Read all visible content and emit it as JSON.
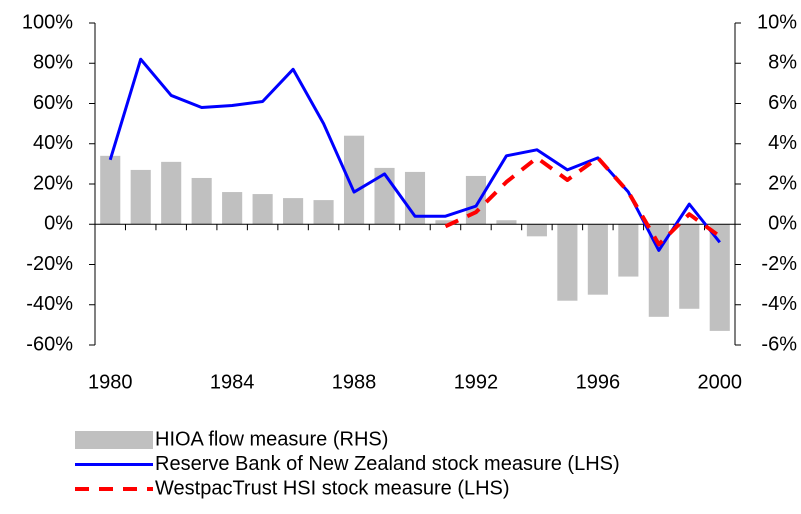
{
  "chart_data": {
    "type": "bar-line",
    "categories": [
      "1980",
      null,
      null,
      null,
      "1984",
      null,
      null,
      null,
      "1988",
      null,
      null,
      null,
      "1992",
      null,
      null,
      null,
      "1996",
      null,
      null,
      null,
      "2000"
    ],
    "series": [
      {
        "name": "HIOA flow measure (RHS)",
        "type": "bar",
        "axis": "y2",
        "color": "#c0c0c0",
        "values": [
          3.4,
          2.7,
          3.1,
          2.3,
          1.6,
          1.5,
          1.3,
          1.2,
          4.4,
          2.8,
          2.6,
          0.2,
          2.4,
          0.2,
          -0.6,
          -3.8,
          -3.5,
          -2.6,
          -4.6,
          -4.2,
          -5.3
        ]
      },
      {
        "name": "Reserve Bank of New Zealand stock measure (LHS)",
        "type": "line",
        "color": "#0000ff",
        "dash": "solid",
        "values": [
          32,
          82,
          64,
          58,
          59,
          61,
          77,
          50,
          16,
          25,
          4,
          4,
          9,
          34,
          37,
          27,
          33,
          16,
          -13,
          10,
          -9
        ]
      },
      {
        "name": "WestpacTrust HSI stock measure (LHS)",
        "type": "line",
        "color": "#ff0000",
        "dash": "dashed",
        "values": [
          null,
          null,
          null,
          null,
          null,
          null,
          null,
          null,
          null,
          null,
          null,
          -1,
          6,
          21,
          33,
          22,
          33,
          16,
          -10,
          5,
          -6
        ]
      }
    ],
    "ylim": [
      -60,
      100
    ],
    "yticks": [
      {
        "value": 100,
        "label": "100%"
      },
      {
        "value": 80,
        "label": "80%"
      },
      {
        "value": 60,
        "label": "60%"
      },
      {
        "value": 40,
        "label": "40%"
      },
      {
        "value": 20,
        "label": "20%"
      },
      {
        "value": 0,
        "label": "0%"
      },
      {
        "value": -20,
        "label": "-20%"
      },
      {
        "value": -40,
        "label": "-40%"
      },
      {
        "value": -60,
        "label": "-60%"
      }
    ],
    "y2lim": [
      -6,
      10
    ],
    "y2ticks": [
      {
        "value": 10,
        "label": "10%"
      },
      {
        "value": 8,
        "label": "8%"
      },
      {
        "value": 6,
        "label": "6%"
      },
      {
        "value": 4,
        "label": "4%"
      },
      {
        "value": 2,
        "label": "2%"
      },
      {
        "value": 0,
        "label": "0%"
      },
      {
        "value": -2,
        "label": "-2%"
      },
      {
        "value": -4,
        "label": "-4%"
      },
      {
        "value": -6,
        "label": "-6%"
      }
    ]
  }
}
